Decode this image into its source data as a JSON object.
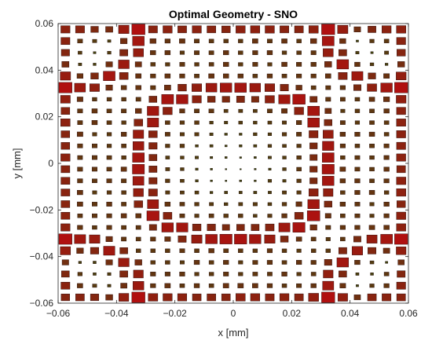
{
  "chart_data": {
    "type": "scatter",
    "title": "Optimal Geometry - SNO",
    "xlabel": "x [mm]",
    "ylabel": "y [mm]",
    "xlim": [
      -0.06,
      0.06
    ],
    "ylim": [
      -0.06,
      0.06
    ],
    "xticks": [
      "−0.06",
      "−0.04",
      "−0.02",
      "0",
      "0.02",
      "0.04",
      "0.06"
    ],
    "yticks": [
      "−0.06",
      "−0.04",
      "−0.02",
      "0",
      "0.02",
      "0.04",
      "0.06"
    ],
    "xtick_values": [
      -0.06,
      -0.04,
      -0.02,
      0,
      0.02,
      0.04,
      0.06
    ],
    "ytick_values": [
      -0.06,
      -0.04,
      -0.02,
      0,
      0.02,
      0.04,
      0.06
    ],
    "grid": false,
    "marker": "square",
    "lattice": {
      "pitch": 0.005,
      "count_x": 24,
      "count_y": 24,
      "start": -0.0575
    },
    "side_length_range": [
      0.0005,
      0.0045
    ],
    "colors": {
      "fill_max": "#b01010",
      "fill_min": "#2e5010",
      "edge": "#1a0000"
    }
  }
}
